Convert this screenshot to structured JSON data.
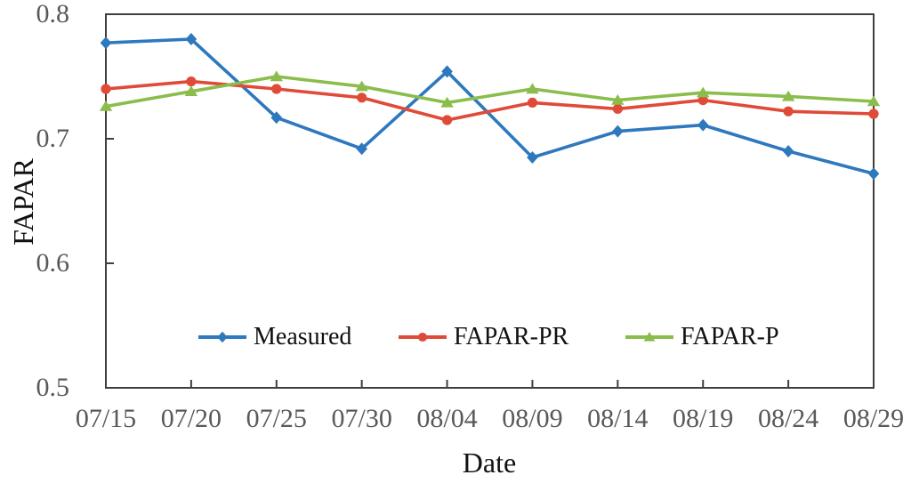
{
  "chart_data": {
    "type": "line",
    "title": "",
    "xlabel": "Date",
    "ylabel": "FAPAR",
    "ylim": [
      0.5,
      0.8
    ],
    "yticks": [
      0.8,
      0.7,
      0.6,
      0.5
    ],
    "ytick_labels": [
      "0.8",
      "0.7",
      "0.6",
      "0.5"
    ],
    "categories": [
      "07/15",
      "07/20",
      "07/25",
      "07/30",
      "08/04",
      "08/09",
      "08/14",
      "08/19",
      "08/24",
      "08/29"
    ],
    "grid": "off",
    "legend_position": "inside-bottom-center",
    "series": [
      {
        "name": "Measured",
        "marker": "diamond",
        "color": "#2e78be",
        "values": [
          0.777,
          0.78,
          0.717,
          0.692,
          0.754,
          0.685,
          0.706,
          0.711,
          0.69,
          0.672
        ]
      },
      {
        "name": "FAPAR-PR",
        "marker": "circle",
        "color": "#df4b38",
        "values": [
          0.74,
          0.746,
          0.74,
          0.733,
          0.715,
          0.729,
          0.724,
          0.731,
          0.722,
          0.72
        ]
      },
      {
        "name": "FAPAR-P",
        "marker": "triangle",
        "color": "#8abd4b",
        "values": [
          0.726,
          0.738,
          0.75,
          0.742,
          0.729,
          0.74,
          0.731,
          0.737,
          0.734,
          0.73
        ]
      }
    ]
  },
  "colors": {
    "axis": "#3f3f3f",
    "tick_label": "#595959",
    "text": "#111111"
  }
}
